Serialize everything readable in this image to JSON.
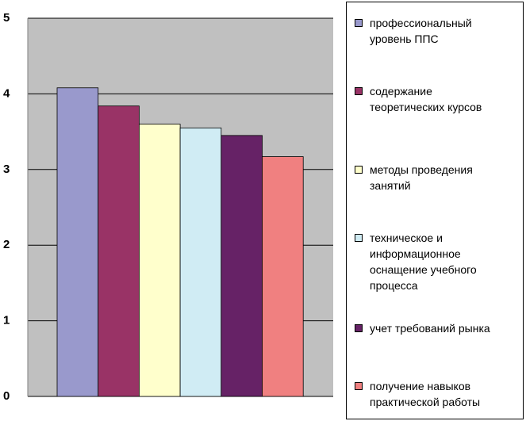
{
  "chart_data": {
    "type": "bar",
    "series": [
      {
        "name": "профессиональный уровень ППС",
        "color": "#9999cc",
        "values": [
          4.08
        ]
      },
      {
        "name": "содержание теоретических курсов",
        "color": "#993366",
        "values": [
          3.84
        ]
      },
      {
        "name": "методы проведения занятий",
        "color": "#ffffcc",
        "values": [
          3.6
        ]
      },
      {
        "name": "техническое и информационное оснащение учебного процесса",
        "color": "#d0ecf4",
        "values": [
          3.55
        ]
      },
      {
        "name": "учет требований рынка",
        "color": "#662266",
        "values": [
          3.45
        ]
      },
      {
        "name": "получение навыков практической работы",
        "color": "#f08080",
        "values": [
          3.17
        ]
      }
    ],
    "ylim": [
      0,
      5
    ],
    "yticks": [
      0,
      1,
      2,
      3,
      4,
      5
    ],
    "grid": true
  }
}
